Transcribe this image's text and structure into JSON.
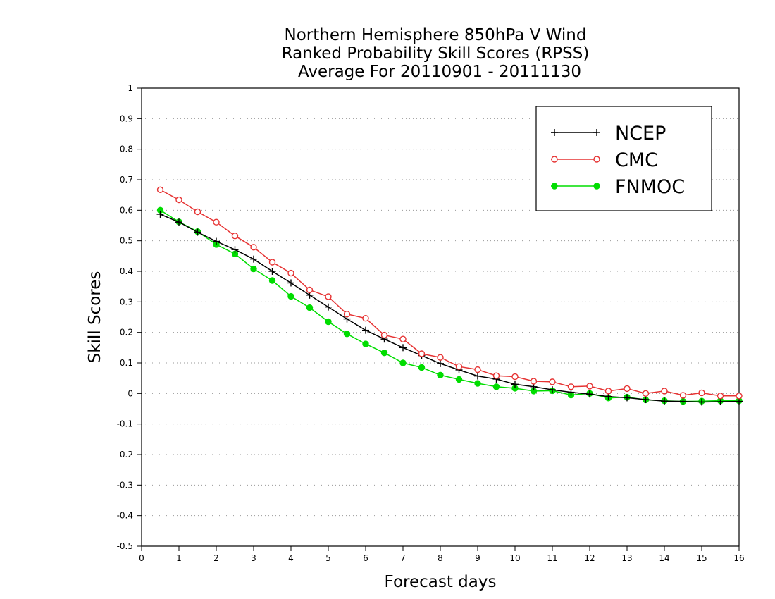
{
  "chart_data": {
    "type": "line",
    "title_lines": [
      "Northern Hemisphere 850hPa V Wind",
      "Ranked Probability Skill Scores (RPSS)",
      "Average For 20110901 - 20111130"
    ],
    "xlabel": "Forecast days",
    "ylabel": "Skill Scores",
    "xlim": [
      0,
      16
    ],
    "ylim": [
      -0.5,
      1
    ],
    "x_ticks": [
      "0",
      "1",
      "2",
      "3",
      "4",
      "5",
      "6",
      "7",
      "8",
      "9",
      "10",
      "11",
      "12",
      "13",
      "14",
      "15",
      "16"
    ],
    "y_ticks": [
      "1",
      "0.9",
      "0.8",
      "0.7",
      "0.6",
      "0.5",
      "0.4",
      "0.3",
      "0.2",
      "0.1",
      "0",
      "-0.1",
      "-0.2",
      "-0.3",
      "-0.4",
      "-0.5"
    ],
    "grid": "horizontal dotted",
    "legend_position": "top-right",
    "x": [
      0.5,
      1,
      1.5,
      2,
      2.5,
      3,
      3.5,
      4,
      4.5,
      5,
      5.5,
      6,
      6.5,
      7,
      7.5,
      8,
      8.5,
      9,
      9.5,
      10,
      10.5,
      11,
      11.5,
      12,
      12.5,
      13,
      13.5,
      14,
      14.5,
      15,
      15.5,
      16
    ],
    "series": [
      {
        "name": "NCEP",
        "color": "#000000",
        "marker": "plus",
        "values": [
          0.587,
          0.561,
          0.528,
          0.498,
          0.471,
          0.44,
          0.4,
          0.362,
          0.322,
          0.283,
          0.244,
          0.207,
          0.178,
          0.15,
          0.124,
          0.098,
          0.077,
          0.057,
          0.047,
          0.03,
          0.022,
          0.012,
          0.004,
          -0.002,
          -0.01,
          -0.014,
          -0.02,
          -0.025,
          -0.026,
          -0.028,
          -0.027,
          -0.026
        ]
      },
      {
        "name": "CMC",
        "color": "#e63232",
        "marker": "open-circle",
        "values": [
          0.667,
          0.634,
          0.595,
          0.561,
          0.516,
          0.479,
          0.43,
          0.394,
          0.339,
          0.317,
          0.26,
          0.246,
          0.191,
          0.178,
          0.13,
          0.118,
          0.088,
          0.078,
          0.058,
          0.055,
          0.04,
          0.038,
          0.022,
          0.024,
          0.008,
          0.016,
          0.0,
          0.008,
          -0.006,
          0.002,
          -0.008,
          -0.008
        ]
      },
      {
        "name": "FNMOC",
        "color": "#00dd00",
        "marker": "filled-circle",
        "values": [
          0.6,
          0.562,
          0.53,
          0.488,
          0.457,
          0.408,
          0.37,
          0.318,
          0.281,
          0.235,
          0.195,
          0.162,
          0.133,
          0.1,
          0.085,
          0.06,
          0.046,
          0.033,
          0.022,
          0.017,
          0.008,
          0.009,
          -0.005,
          0.0,
          -0.015,
          -0.012,
          -0.021,
          -0.024,
          -0.026,
          -0.025,
          -0.024,
          -0.024
        ]
      }
    ]
  }
}
